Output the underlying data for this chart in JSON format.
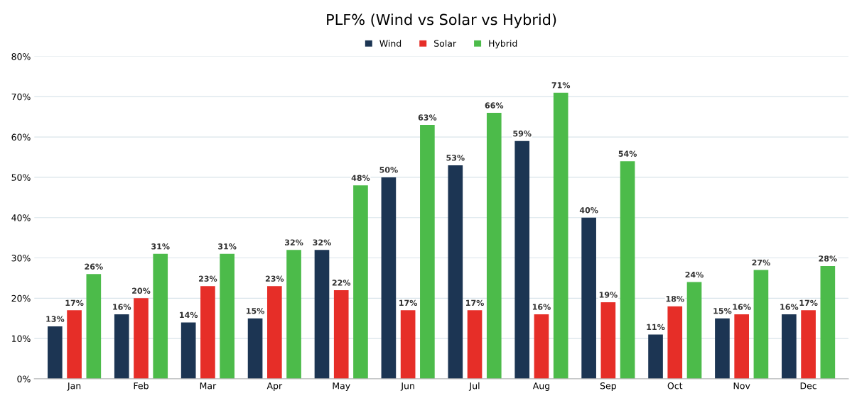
{
  "chart_data": {
    "type": "bar",
    "title": "PLF% (Wind vs Solar vs Hybrid)",
    "categories": [
      "Jan",
      "Feb",
      "Mar",
      "Apr",
      "May",
      "Jun",
      "Jul",
      "Aug",
      "Sep",
      "Oct",
      "Nov",
      "Dec"
    ],
    "series": [
      {
        "name": "Wind",
        "color": "#1c3553",
        "values": [
          13,
          16,
          14,
          15,
          32,
          50,
          53,
          59,
          40,
          11,
          15,
          16
        ],
        "value_labels": [
          "13%",
          "16%",
          "14%",
          "15%",
          "32%",
          "50%",
          "53%",
          "59%",
          "40%",
          "11%",
          "15%",
          "16%"
        ]
      },
      {
        "name": "Solar",
        "color": "#e62e28",
        "values": [
          17,
          20,
          23,
          23,
          22,
          17,
          17,
          16,
          19,
          18,
          16,
          17
        ],
        "value_labels": [
          "17%",
          "20%",
          "23%",
          "23%",
          "22%",
          "17%",
          "17%",
          "16%",
          "19%",
          "18%",
          "16%",
          "17%"
        ]
      },
      {
        "name": "Hybrid",
        "color": "#4cbb4a",
        "values": [
          26,
          31,
          31,
          32,
          48,
          63,
          66,
          71,
          54,
          24,
          27,
          28
        ],
        "value_labels": [
          "26%",
          "31%",
          "31%",
          "32%",
          "48%",
          "63%",
          "66%",
          "71%",
          "54%",
          "24%",
          "27%",
          "28%"
        ]
      }
    ],
    "ylim": [
      0,
      80
    ],
    "yticks": [
      {
        "value": 0,
        "label": "0%"
      },
      {
        "value": 10,
        "label": "10%"
      },
      {
        "value": 20,
        "label": "20%"
      },
      {
        "value": 30,
        "label": "30%"
      },
      {
        "value": 40,
        "label": "40%"
      },
      {
        "value": 50,
        "label": "50%"
      },
      {
        "value": 60,
        "label": "60%"
      },
      {
        "value": 70,
        "label": "70%"
      },
      {
        "value": 80,
        "label": "80%"
      }
    ],
    "grid": "y",
    "legend": "top"
  }
}
